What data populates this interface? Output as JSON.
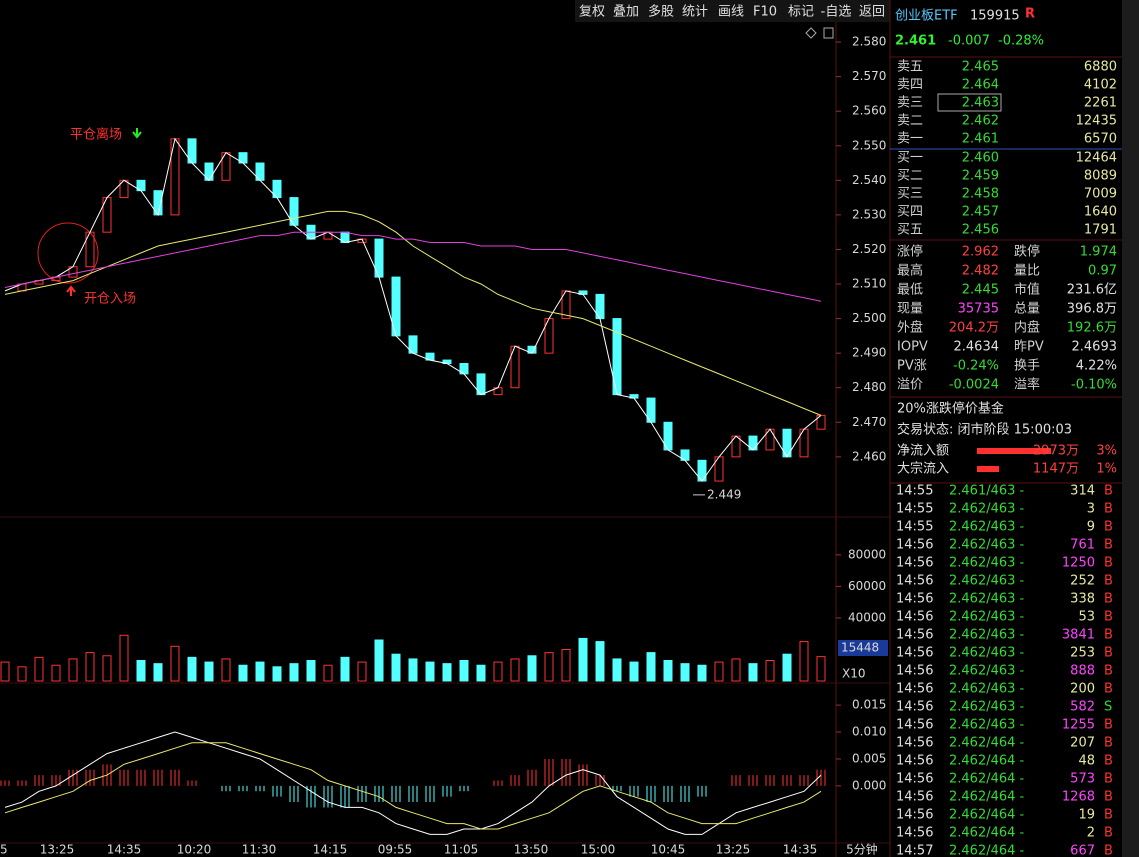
{
  "toolbar": [
    "复权",
    "叠加",
    "多股",
    "统计",
    "画线",
    "F10",
    "标记",
    "-自选",
    "返回"
  ],
  "quote": {
    "name": "创业板ETF",
    "code": "159915",
    "badge": "R",
    "price": "2.461",
    "change": "-0.007",
    "change_pct": "-0.28%"
  },
  "order_book": [
    [
      "卖五",
      "2.465",
      "6880"
    ],
    [
      "卖四",
      "2.464",
      "4102"
    ],
    [
      "卖三",
      "2.463",
      "2261"
    ],
    [
      "卖二",
      "2.462",
      "12435"
    ],
    [
      "卖一",
      "2.461",
      "6570"
    ],
    [
      "买一",
      "2.460",
      "12464"
    ],
    [
      "买二",
      "2.459",
      "8089"
    ],
    [
      "买三",
      "2.458",
      "7009"
    ],
    [
      "买四",
      "2.457",
      "1640"
    ],
    [
      "买五",
      "2.456",
      "1791"
    ]
  ],
  "stats": [
    [
      "涨停",
      "2.962",
      "跌停",
      "1.974"
    ],
    [
      "最高",
      "2.482",
      "量比",
      "0.97"
    ],
    [
      "最低",
      "2.445",
      "市值",
      "231.6亿"
    ],
    [
      "现量",
      "35735",
      "总量",
      "396.8万"
    ],
    [
      "外盘",
      "204.2万",
      "内盘",
      "192.6万"
    ],
    [
      "IOPV",
      "2.4634",
      "昨PV",
      "2.4693"
    ],
    [
      "PV涨",
      "-0.24%",
      "换手",
      "4.22%"
    ],
    [
      "溢价",
      "-0.0024",
      "溢率",
      "-0.10%"
    ]
  ],
  "stats_colors": [
    [
      "#ff4040",
      "#33dd33"
    ],
    [
      "#ff4040",
      "#33dd33"
    ],
    [
      "#33dd33",
      "#e0e0e0"
    ],
    [
      "#ff44ff",
      "#e0e0e0"
    ],
    [
      "#ff4040",
      "#33dd33"
    ],
    [
      "#e0e0e0",
      "#e0e0e0"
    ],
    [
      "#33dd33",
      "#e0e0e0"
    ],
    [
      "#33dd33",
      "#33dd33"
    ]
  ],
  "fund_type": "20%涨跌停价基金",
  "trade_status": "交易状态: 闭市阶段 15:00:03",
  "flows": [
    [
      "净流入额",
      "2973万",
      "3%"
    ],
    [
      "大宗流入",
      "1147万",
      "1%"
    ]
  ],
  "trades": [
    [
      "14:55",
      "2.461/463 -",
      "314",
      "B"
    ],
    [
      "14:55",
      "2.462/463 -",
      "3",
      "B"
    ],
    [
      "14:55",
      "2.462/463 -",
      "9",
      "B"
    ],
    [
      "14:56",
      "2.462/463 -",
      "761",
      "B"
    ],
    [
      "14:56",
      "2.462/463 -",
      "1250",
      "B"
    ],
    [
      "14:56",
      "2.462/463 -",
      "252",
      "B"
    ],
    [
      "14:56",
      "2.462/463 -",
      "338",
      "B"
    ],
    [
      "14:56",
      "2.462/463 -",
      "53",
      "B"
    ],
    [
      "14:56",
      "2.462/463 -",
      "3841",
      "B"
    ],
    [
      "14:56",
      "2.462/463 -",
      "253",
      "B"
    ],
    [
      "14:56",
      "2.462/463 -",
      "888",
      "B"
    ],
    [
      "14:56",
      "2.462/463 -",
      "200",
      "B"
    ],
    [
      "14:56",
      "2.462/463 -",
      "582",
      "S"
    ],
    [
      "14:56",
      "2.462/463 -",
      "1255",
      "B"
    ],
    [
      "14:56",
      "2.462/464 -",
      "207",
      "B"
    ],
    [
      "14:56",
      "2.462/464 -",
      "48",
      "B"
    ],
    [
      "14:56",
      "2.462/464 -",
      "573",
      "B"
    ],
    [
      "14:56",
      "2.462/464 -",
      "1268",
      "B"
    ],
    [
      "14:56",
      "2.462/464 -",
      "19",
      "B"
    ],
    [
      "14:56",
      "2.462/464 -",
      "2",
      "B"
    ],
    [
      "14:57",
      "2.462/464 -",
      "667",
      "B"
    ]
  ],
  "time_axis": [
    "5",
    "13:25",
    "14:35",
    "10:20",
    "11:30",
    "14:15",
    "09:55",
    "11:05",
    "13:50",
    "15:00",
    "10:45",
    "13:25",
    "14:35"
  ],
  "period": "5分钟",
  "chart_data": [
    {
      "type": "candle",
      "ylim": [
        2.4426,
        2.5858
      ],
      "yticks": [
        {
          "value": 2.58,
          "label": "2.580"
        },
        {
          "value": 2.57,
          "label": "2.570"
        },
        {
          "value": 2.56,
          "label": "2.560"
        },
        {
          "value": 2.55,
          "label": "2.550"
        },
        {
          "value": 2.54,
          "label": "2.540"
        },
        {
          "value": 2.53,
          "label": "2.530"
        },
        {
          "value": 2.52,
          "label": "2.520"
        },
        {
          "value": 2.51,
          "label": "2.510"
        },
        {
          "value": 2.5,
          "label": "2.500"
        },
        {
          "value": 2.49,
          "label": "2.490"
        },
        {
          "value": 2.48,
          "label": "2.480"
        },
        {
          "value": 2.47,
          "label": "2.470"
        },
        {
          "value": 2.46,
          "label": "2.460"
        }
      ],
      "up_color": "#ff3232",
      "down_color": "#54ffff",
      "series": [
        {
          "color": "#ffffff",
          "values": [
            2.508,
            2.51,
            2.511,
            2.512,
            2.515,
            2.525,
            2.535,
            2.54,
            2.537,
            2.53,
            2.552,
            2.545,
            2.54,
            2.548,
            2.545,
            2.54,
            2.535,
            2.527,
            2.523,
            2.525,
            2.522,
            2.523,
            2.512,
            2.495,
            2.49,
            2.488,
            2.487,
            2.484,
            2.478,
            2.48,
            2.492,
            2.49,
            2.5,
            2.508,
            2.507,
            2.5,
            2.478,
            2.477,
            2.47,
            2.462,
            2.459,
            2.453,
            2.46,
            2.466,
            2.462,
            2.468,
            2.46,
            2.468,
            2.472
          ]
        },
        {
          "color": "#e8e870",
          "values": [
            2.507,
            2.508,
            2.509,
            2.51,
            2.511,
            2.513,
            2.515,
            2.517,
            2.519,
            2.521,
            2.522,
            2.523,
            2.524,
            2.525,
            2.526,
            2.527,
            2.528,
            2.529,
            2.53,
            2.531,
            2.531,
            2.53,
            2.528,
            2.525,
            2.521,
            2.518,
            2.515,
            2.512,
            2.51,
            2.507,
            2.505,
            2.503,
            2.502,
            2.501,
            2.5,
            2.498,
            2.496,
            2.494,
            2.492,
            2.49,
            2.488,
            2.486,
            2.484,
            2.482,
            2.48,
            2.478,
            2.476,
            2.474,
            2.472
          ]
        },
        {
          "color": "#e040e0",
          "values": [
            2.509,
            2.51,
            2.511,
            2.512,
            2.513,
            2.514,
            2.515,
            2.516,
            2.517,
            2.518,
            2.519,
            2.52,
            2.521,
            2.522,
            2.523,
            2.524,
            2.524,
            2.525,
            2.525,
            2.525,
            2.525,
            2.524,
            2.524,
            2.523,
            2.523,
            2.522,
            2.522,
            2.522,
            2.521,
            2.521,
            2.521,
            2.52,
            2.52,
            2.52,
            2.519,
            2.518,
            2.517,
            2.516,
            2.515,
            2.514,
            2.513,
            2.512,
            2.511,
            2.51,
            2.509,
            2.508,
            2.507,
            2.506,
            2.505
          ]
        }
      ],
      "annotations": [
        "平仓离场",
        "开仓入场"
      ],
      "min_label": 2.449
    },
    {
      "type": "bar",
      "ylim": [
        0,
        104000
      ],
      "yticks": [
        80000,
        60000,
        40000
      ],
      "values": [
        12000,
        9000,
        15000,
        10000,
        14000,
        18000,
        16000,
        29000,
        13000,
        11000,
        22000,
        15000,
        12000,
        14000,
        10000,
        12000,
        9000,
        11000,
        13000,
        10000,
        15000,
        12000,
        26000,
        17000,
        14000,
        12000,
        11000,
        13000,
        10000,
        12000,
        14000,
        16000,
        18000,
        20000,
        27000,
        25000,
        14000,
        12000,
        18000,
        13000,
        11000,
        10000,
        12000,
        14000,
        11000,
        13000,
        17000,
        25000,
        15448
      ],
      "current_label": "15448",
      "unit_label": "X10"
    },
    {
      "type": "macd",
      "ylim": [
        -0.0106,
        0.0191
      ],
      "yticks": [
        {
          "value": 0.015,
          "label": "0.015"
        },
        {
          "value": 0.01,
          "label": "0.010"
        },
        {
          "value": 0.005,
          "label": "0.005"
        },
        {
          "value": 0,
          "label": "0.000"
        }
      ],
      "series": [
        {
          "color": "#ffffff",
          "values": [
            -0.004,
            -0.003,
            -0.001,
            0,
            0.002,
            0.004,
            0.006,
            0.007,
            0.008,
            0.009,
            0.01,
            0.009,
            0.008,
            0.007,
            0.006,
            0.005,
            0.003,
            0.001,
            -0.001,
            -0.003,
            -0.004,
            -0.004,
            -0.005,
            -0.007,
            -0.008,
            -0.009,
            -0.009,
            -0.008,
            -0.008,
            -0.007,
            -0.005,
            -0.003,
            0,
            0.002,
            0.003,
            0.002,
            -0.002,
            -0.004,
            -0.006,
            -0.008,
            -0.009,
            -0.009,
            -0.007,
            -0.005,
            -0.004,
            -0.003,
            -0.002,
            -0.001,
            0.002
          ]
        },
        {
          "color": "#e8e870",
          "values": [
            -0.005,
            -0.004,
            -0.003,
            -0.002,
            -0.001,
            0.001,
            0.002,
            0.004,
            0.005,
            0.006,
            0.007,
            0.008,
            0.008,
            0.008,
            0.007,
            0.006,
            0.005,
            0.004,
            0.003,
            0.001,
            0,
            -0.001,
            -0.002,
            -0.004,
            -0.005,
            -0.006,
            -0.007,
            -0.007,
            -0.008,
            -0.008,
            -0.007,
            -0.006,
            -0.005,
            -0.003,
            -0.001,
            0,
            -0.001,
            -0.002,
            -0.003,
            -0.005,
            -0.006,
            -0.007,
            -0.007,
            -0.007,
            -0.006,
            -0.005,
            -0.004,
            -0.003,
            -0.001
          ]
        }
      ],
      "histogram": [
        0.001,
        0.001,
        0.002,
        0.002,
        0.003,
        0.003,
        0.004,
        0.003,
        0.003,
        0.003,
        0.003,
        0.001,
        0,
        -0.001,
        -0.001,
        -0.001,
        -0.002,
        -0.003,
        -0.004,
        -0.004,
        -0.004,
        -0.003,
        -0.003,
        -0.003,
        -0.003,
        -0.003,
        -0.002,
        -0.001,
        0,
        0.001,
        0.002,
        0.003,
        0.005,
        0.005,
        0.004,
        0.002,
        -0.001,
        -0.002,
        -0.003,
        -0.003,
        -0.003,
        -0.002,
        0,
        0.002,
        0.002,
        0.002,
        0.002,
        0.002,
        0.003
      ]
    }
  ]
}
